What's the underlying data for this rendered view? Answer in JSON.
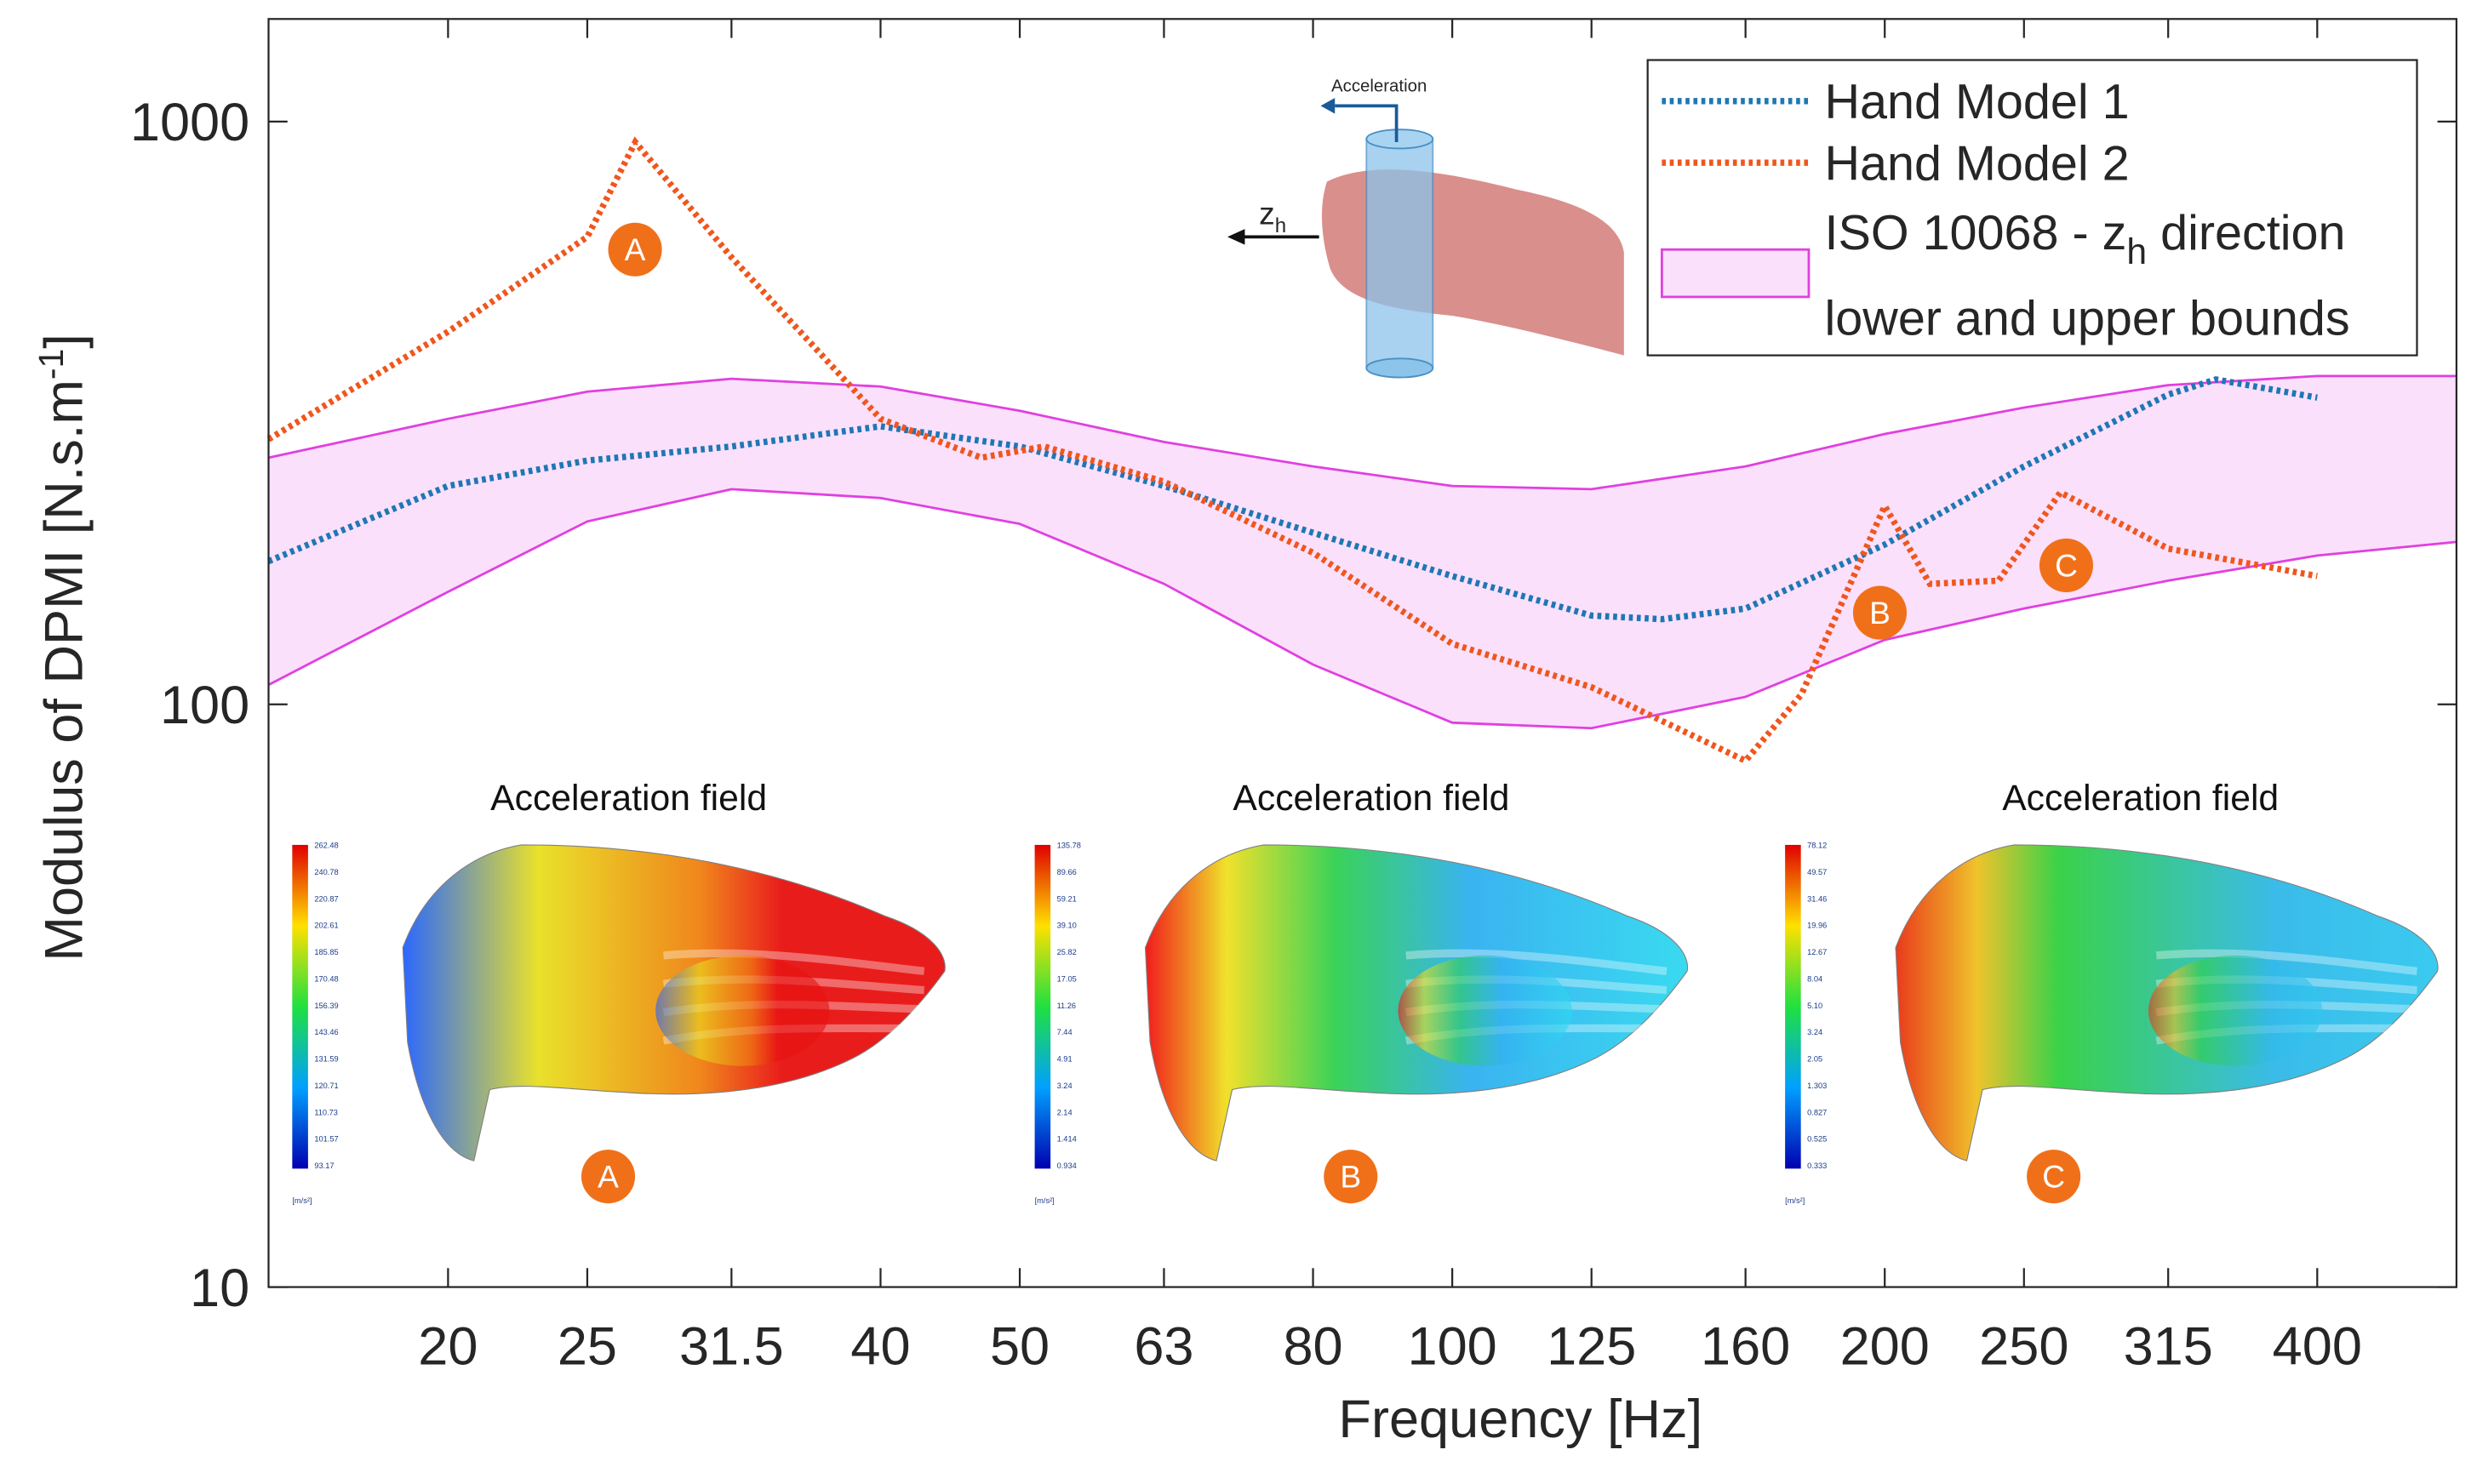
{
  "chart_data": {
    "type": "line",
    "x_label": "Frequency [Hz]",
    "y_label_parts": [
      "Modulus of DPMI [N.s.m",
      "-1",
      "]"
    ],
    "log_x": true,
    "log_y": true,
    "xlim": [
      15,
      500
    ],
    "ylim": [
      10,
      1500
    ],
    "xticks": [
      20,
      25,
      31.5,
      40,
      50,
      63,
      80,
      100,
      125,
      160,
      200,
      250,
      315,
      400
    ],
    "yticks": [
      10,
      100,
      1000
    ],
    "series": [
      {
        "name": "Hand Model 1",
        "color": "#1f77b4",
        "x": [
          15,
          20,
          25,
          31.5,
          40,
          50,
          63,
          80,
          100,
          125,
          140,
          160,
          200,
          250,
          315,
          340,
          400
        ],
        "values": [
          176,
          237,
          262,
          277,
          300,
          277,
          237,
          197,
          166,
          142,
          140,
          146,
          188,
          256,
          340,
          361,
          336
        ]
      },
      {
        "name": "Hand Model 2",
        "color": "#f0561d",
        "x": [
          15,
          20,
          25,
          27,
          31.5,
          40,
          47,
          52,
          63,
          80,
          100,
          125,
          160,
          175,
          200,
          215,
          240,
          265,
          315,
          400
        ],
        "values": [
          285,
          436,
          634,
          922,
          585,
          309,
          265,
          277,
          241,
          182,
          127,
          107,
          80,
          104,
          219,
          161,
          163,
          231,
          185,
          166
        ]
      }
    ],
    "band": {
      "name_parts": [
        "ISO 10068 - z",
        "h",
        " direction",
        "lower and upper bounds"
      ],
      "color": "#e040e0",
      "fill": "#fbe0fb",
      "x": [
        15,
        20,
        25,
        31.5,
        40,
        50,
        63,
        80,
        100,
        125,
        160,
        200,
        250,
        315,
        400,
        500
      ],
      "lower": [
        108,
        156,
        206,
        234,
        226,
        204,
        161,
        117,
        93,
        91,
        103,
        129,
        146,
        163,
        180,
        190
      ],
      "upper": [
        265,
        309,
        344,
        362,
        351,
        319,
        282,
        256,
        237,
        234,
        256,
        291,
        323,
        353,
        366,
        366
      ]
    },
    "annotations": [
      "A",
      "B",
      "C"
    ],
    "hand_inset": {
      "arrow_label": "Acceleration",
      "axis_parts": [
        "z",
        "h"
      ]
    },
    "insets": [
      {
        "title": "Acceleration field",
        "label": "A",
        "unit": "[m/s²]",
        "colorbar": [
          "262.48",
          "240.78",
          "220.87",
          "202.61",
          "185.85",
          "170.48",
          "156.39",
          "143.46",
          "131.59",
          "120.71",
          "110.73",
          "101.57",
          "93.17"
        ]
      },
      {
        "title": "Acceleration field",
        "label": "B",
        "unit": "[m/s²]",
        "colorbar": [
          "135.78",
          "89.66",
          "59.21",
          "39.10",
          "25.82",
          "17.05",
          "11.26",
          "7.44",
          "4.91",
          "3.24",
          "2.14",
          "1.414",
          "0.934"
        ]
      },
      {
        "title": "Acceleration field",
        "label": "C",
        "unit": "[m/s²]",
        "colorbar": [
          "78.12",
          "49.57",
          "31.46",
          "19.96",
          "12.67",
          "8.04",
          "5.10",
          "3.24",
          "2.05",
          "1.303",
          "0.827",
          "0.525",
          "0.333"
        ]
      }
    ]
  }
}
